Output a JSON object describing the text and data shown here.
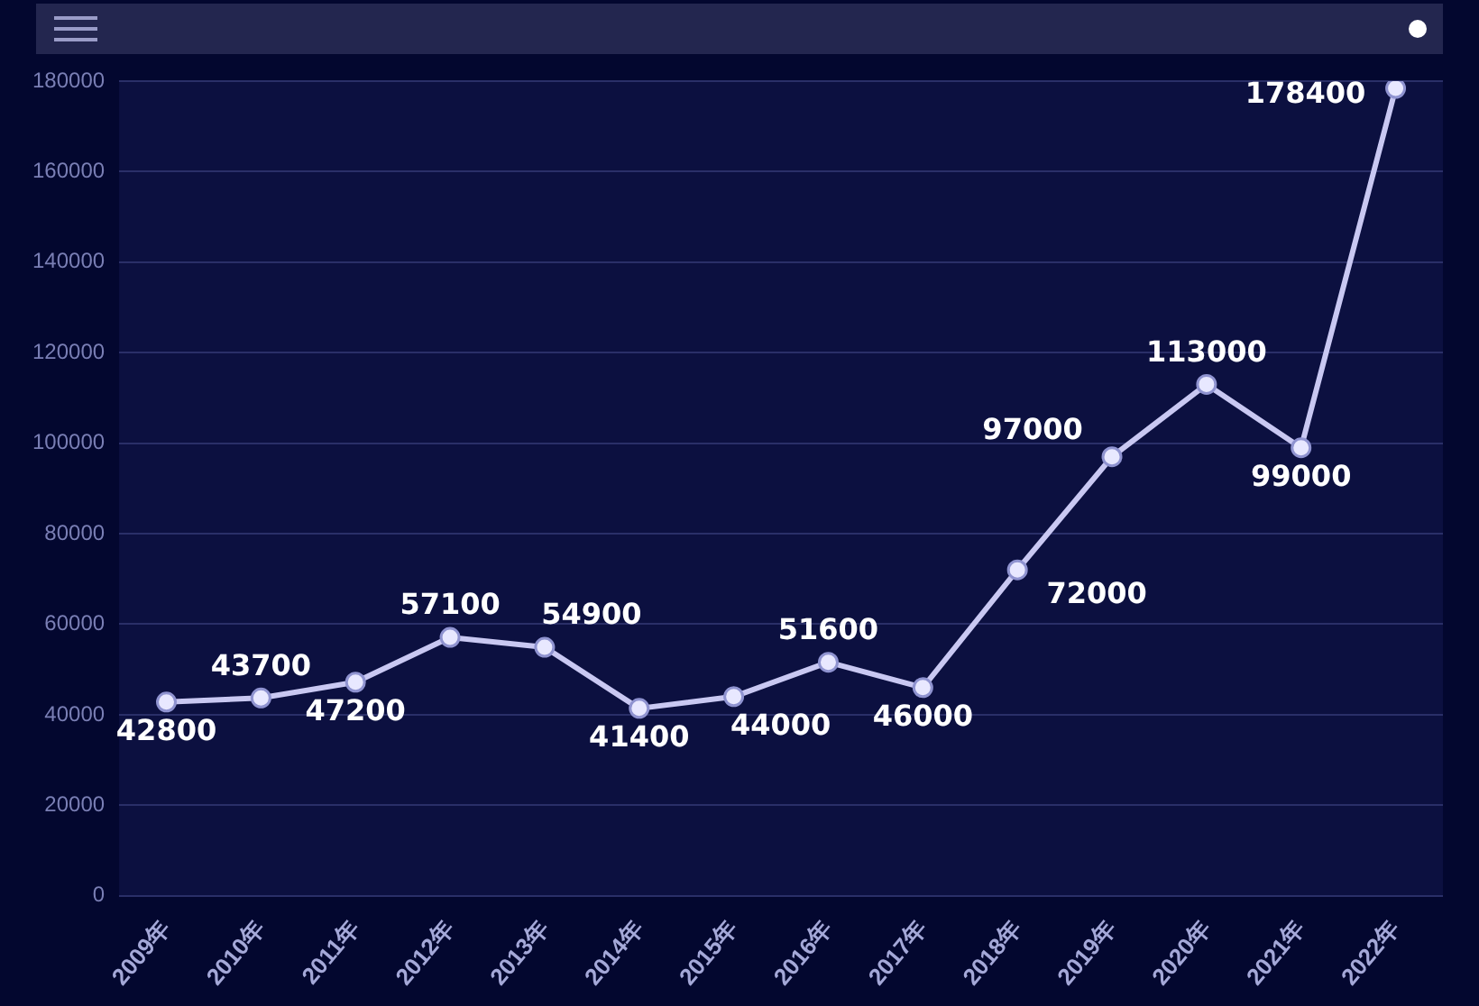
{
  "chart_data": {
    "type": "line",
    "categories": [
      "2009年",
      "2010年",
      "2011年",
      "2012年",
      "2013年",
      "2014年",
      "2015年",
      "2016年",
      "2017年",
      "2018年",
      "2019年",
      "2020年",
      "2021年",
      "2022年"
    ],
    "series": [
      {
        "color": "#c9c8f2",
        "values": [
          42800,
          43700,
          47200,
          57100,
          54900,
          41400,
          44000,
          51600,
          46000,
          72000,
          97000,
          113000,
          99000,
          178400
        ]
      }
    ],
    "ylim": [
      0,
      180000
    ],
    "yticks": [
      0,
      20000,
      40000,
      60000,
      80000,
      100000,
      120000,
      140000,
      160000,
      180000
    ],
    "grid": true,
    "marker": "circle",
    "data_labels": true
  }
}
